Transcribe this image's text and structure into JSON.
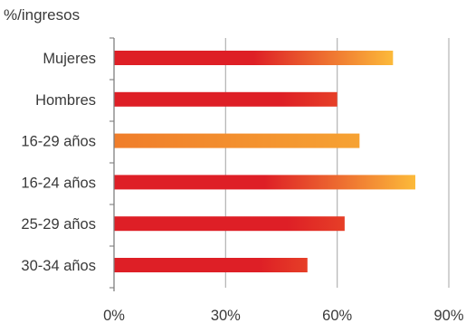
{
  "chart_data": {
    "type": "bar",
    "orientation": "horizontal",
    "unit_label": "%/ingresos",
    "categories": [
      "Mujeres",
      "Hombres",
      "16-29 años",
      "16-24 años",
      "25-29 años",
      "30-34 años"
    ],
    "values": [
      75,
      60,
      66,
      81,
      62,
      52
    ],
    "xlim": [
      0,
      90
    ],
    "xticks": [
      0,
      30,
      60,
      90
    ],
    "xtick_labels": [
      "0%",
      "30%",
      "60%",
      "90%"
    ],
    "grid": "vertical",
    "legend": "none",
    "bar_styles": [
      "red-orange",
      "red",
      "orange",
      "red-orange",
      "red",
      "red"
    ],
    "colors": {
      "red": "#de1f26",
      "orange": "#f07d2a",
      "yellow": "#fcba3a",
      "grid": "#b3b3b3",
      "axis": "#7f7f7f"
    }
  }
}
